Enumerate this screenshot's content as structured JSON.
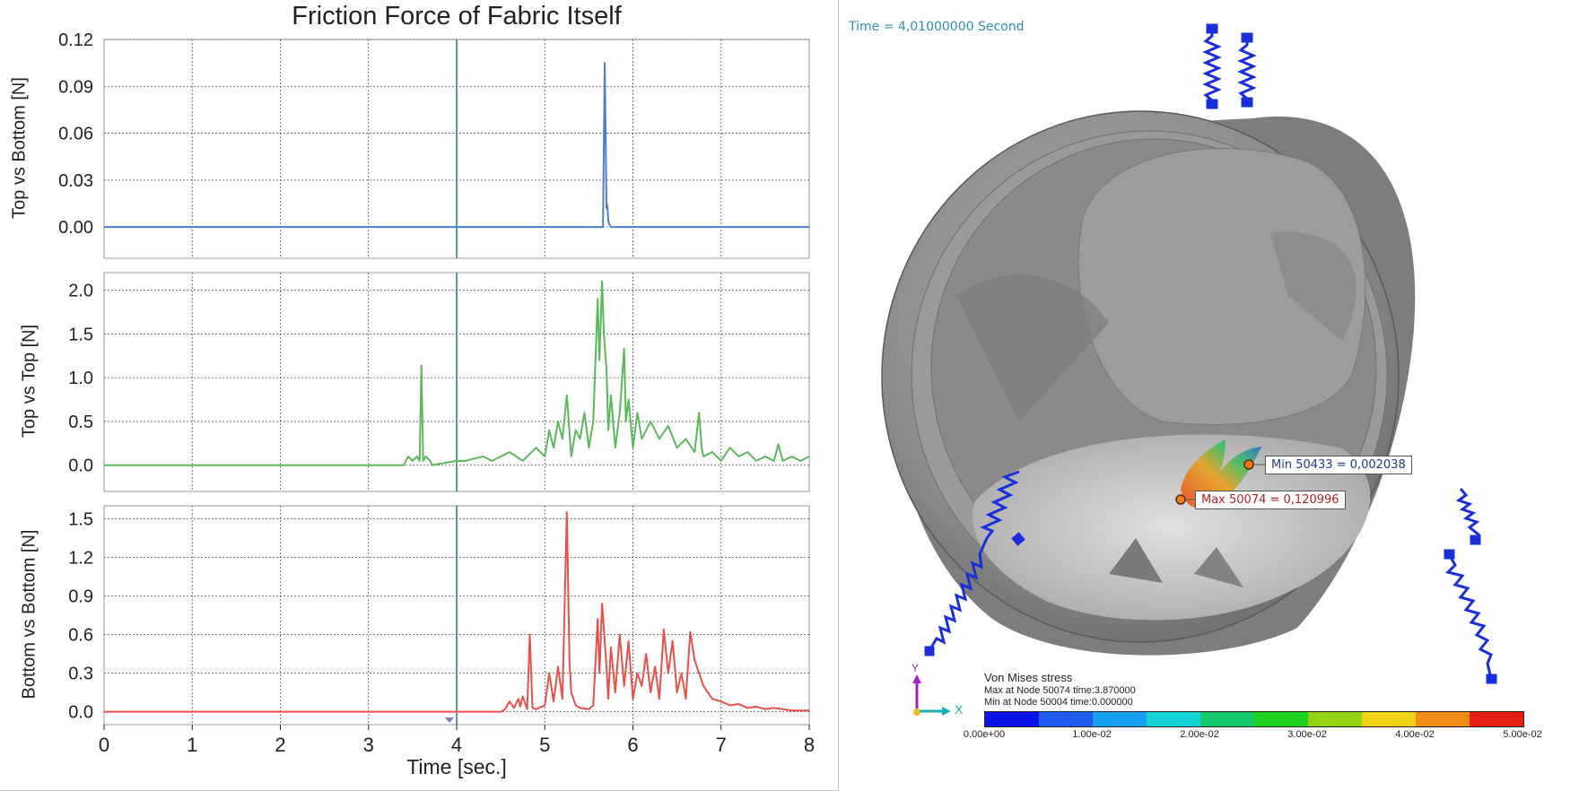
{
  "chart_data": [
    {
      "type": "line",
      "title": "Friction Force of Fabric Itself",
      "ylabel": "Top vs Bottom [N]",
      "xlim": [
        0,
        8
      ],
      "ylim": [
        -0.02,
        0.12
      ],
      "yticks": [
        "0.12",
        "0.09",
        "0.06",
        "0.03",
        "0.00"
      ],
      "ytick_values": [
        0.12,
        0.09,
        0.06,
        0.03,
        0.0
      ],
      "color": "#4a7fd4",
      "grid": true,
      "cursor_x": 4.0,
      "x": [
        0,
        5.6,
        5.66,
        5.68,
        5.69,
        5.7,
        5.71,
        5.72,
        5.73,
        5.75,
        8
      ],
      "y": [
        0,
        0,
        0.0,
        0.105,
        0.06,
        0.012,
        0.014,
        0.004,
        0.002,
        0.0,
        0
      ]
    },
    {
      "type": "line",
      "ylabel": "Top vs Top [N]",
      "xlim": [
        0,
        8
      ],
      "ylim": [
        -0.3,
        2.2
      ],
      "yticks": [
        "2.0",
        "1.5",
        "1.0",
        "0.5",
        "0.0"
      ],
      "ytick_values": [
        2.0,
        1.5,
        1.0,
        0.5,
        0.0
      ],
      "color": "#5cb85c",
      "grid": true,
      "cursor_x": 4.0,
      "x": [
        0,
        3.4,
        3.45,
        3.5,
        3.55,
        3.58,
        3.6,
        3.62,
        3.65,
        3.7,
        3.72,
        4.0,
        4.1,
        4.3,
        4.4,
        4.5,
        4.6,
        4.75,
        4.9,
        5.0,
        5.05,
        5.1,
        5.15,
        5.2,
        5.25,
        5.3,
        5.35,
        5.4,
        5.45,
        5.5,
        5.55,
        5.6,
        5.62,
        5.65,
        5.67,
        5.7,
        5.72,
        5.75,
        5.8,
        5.85,
        5.9,
        5.92,
        5.95,
        6.0,
        6.05,
        6.1,
        6.2,
        6.3,
        6.4,
        6.5,
        6.6,
        6.7,
        6.75,
        6.78,
        6.8,
        6.9,
        7.0,
        7.1,
        7.2,
        7.3,
        7.4,
        7.5,
        7.6,
        7.65,
        7.7,
        7.8,
        7.9,
        8.0
      ],
      "y": [
        0,
        0,
        0.1,
        0.05,
        0.1,
        0.05,
        1.14,
        0.05,
        0.1,
        0.05,
        0,
        0.05,
        0.05,
        0.1,
        0.05,
        0.1,
        0.15,
        0.05,
        0.2,
        0.1,
        0.4,
        0.2,
        0.5,
        0.3,
        0.8,
        0.1,
        0.4,
        0.3,
        0.6,
        0.2,
        0.5,
        1.9,
        1.2,
        2.1,
        1.5,
        1.1,
        0.4,
        0.8,
        0.2,
        0.6,
        1.33,
        0.5,
        0.75,
        0.2,
        0.6,
        0.3,
        0.5,
        0.3,
        0.45,
        0.2,
        0.3,
        0.15,
        0.6,
        0.2,
        0.1,
        0.15,
        0.05,
        0.2,
        0.1,
        0.15,
        0.05,
        0.1,
        0.05,
        0.24,
        0.05,
        0.1,
        0.05,
        0.1
      ]
    },
    {
      "type": "line",
      "ylabel": "Bottom vs Bottom [N]",
      "xlabel": "Time [sec.]",
      "xlim": [
        0,
        8
      ],
      "ylim": [
        -0.1,
        1.6
      ],
      "yticks": [
        "1.5",
        "1.2",
        "0.9",
        "0.6",
        "0.3",
        "0.0"
      ],
      "ytick_values": [
        1.5,
        1.2,
        0.9,
        0.6,
        0.3,
        0.0
      ],
      "xticks": [
        "0",
        "1",
        "2",
        "3",
        "4",
        "5",
        "6",
        "7",
        "8"
      ],
      "xtick_values": [
        0,
        1,
        2,
        3,
        4,
        5,
        6,
        7,
        8
      ],
      "color": "#e8504a",
      "grid": true,
      "cursor_x": 4.0,
      "x": [
        0,
        4.5,
        4.55,
        4.6,
        4.65,
        4.7,
        4.72,
        4.75,
        4.8,
        4.83,
        4.86,
        4.9,
        5.0,
        5.05,
        5.1,
        5.15,
        5.2,
        5.25,
        5.28,
        5.3,
        5.35,
        5.4,
        5.5,
        5.55,
        5.6,
        5.62,
        5.65,
        5.7,
        5.72,
        5.75,
        5.8,
        5.85,
        5.9,
        5.95,
        6.0,
        6.05,
        6.1,
        6.15,
        6.2,
        6.25,
        6.3,
        6.35,
        6.4,
        6.45,
        6.5,
        6.55,
        6.6,
        6.65,
        6.7,
        6.75,
        6.8,
        6.85,
        6.9,
        7.0,
        7.1,
        7.2,
        7.3,
        7.4,
        7.5,
        7.6,
        7.7,
        7.8,
        8.0
      ],
      "y": [
        0,
        0,
        0.02,
        0.08,
        0.03,
        0.1,
        0.04,
        0.12,
        0.02,
        0.6,
        0.03,
        0.02,
        0.05,
        0.3,
        0.08,
        0.35,
        0.1,
        1.55,
        0.4,
        0.15,
        0.05,
        0.03,
        0.02,
        0.05,
        0.72,
        0.3,
        0.84,
        0.35,
        0.1,
        0.5,
        0.15,
        0.6,
        0.2,
        0.55,
        0.1,
        0.3,
        0.2,
        0.45,
        0.15,
        0.35,
        0.1,
        0.64,
        0.3,
        0.55,
        0.15,
        0.3,
        0.1,
        0.62,
        0.4,
        0.3,
        0.2,
        0.15,
        0.1,
        0.08,
        0.05,
        0.06,
        0.03,
        0.04,
        0.02,
        0.03,
        0.02,
        0.01,
        0.01
      ]
    }
  ],
  "viewer": {
    "time_readout": "Time  =  4,01000000  Second",
    "min_callout": "Min 50433 = 0,002038",
    "max_callout": "Max 50074 = 0,120996",
    "axis_y": "Y",
    "axis_x": "X",
    "legend": {
      "title": "Von Mises stress",
      "max_line": "Max at Node 50074 time:3.870000",
      "min_line": "Min at Node 50004 time:0.000000",
      "colors": [
        "#0a14e6",
        "#1e5cf0",
        "#1aa0f0",
        "#14d2d2",
        "#14c86e",
        "#1ed21e",
        "#96d214",
        "#f0d214",
        "#f08c14",
        "#e61e14"
      ],
      "labels": [
        "0.00e+00",
        "1.00e-02",
        "2.00e-02",
        "3.00e-02",
        "4.00e-02",
        "5.00e-02"
      ]
    }
  }
}
